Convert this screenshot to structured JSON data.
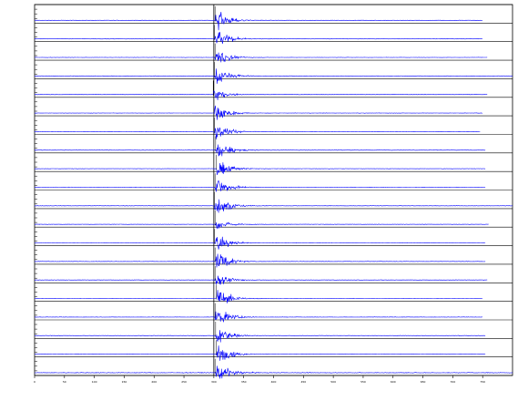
{
  "chart_data": {
    "type": "line",
    "title": "",
    "xlabel": "",
    "ylabel": "",
    "xlim": [
      0,
      800
    ],
    "x_ticks": [
      0,
      50,
      100,
      150,
      200,
      250,
      300,
      350,
      400,
      450,
      500,
      550,
      600,
      650,
      700,
      750
    ],
    "marker_time": 300,
    "trace_color": "#0000ff",
    "axis_color": "#000000",
    "grid": false,
    "series": [
      {
        "index": 1,
        "right_label": "",
        "onset_time": 302,
        "peak_amplitude": 0.9,
        "trace_end": 750
      },
      {
        "index": 2,
        "right_label": "",
        "onset_time": 301,
        "peak_amplitude": 0.9,
        "trace_end": 750
      },
      {
        "index": 3,
        "right_label": "",
        "onset_time": 302,
        "peak_amplitude": 0.8,
        "trace_end": 758
      },
      {
        "index": 4,
        "right_label": "",
        "onset_time": 301,
        "peak_amplitude": 0.9,
        "trace_end": 800
      },
      {
        "index": 5,
        "right_label": "",
        "onset_time": 299,
        "peak_amplitude": 0.6,
        "trace_end": 758
      },
      {
        "index": 6,
        "right_label": "",
        "onset_time": 300,
        "peak_amplitude": 0.9,
        "trace_end": 750
      },
      {
        "index": 7,
        "right_label": "",
        "onset_time": 301,
        "peak_amplitude": 0.8,
        "trace_end": 746
      },
      {
        "index": 8,
        "right_label": "",
        "onset_time": 303,
        "peak_amplitude": 0.9,
        "trace_end": 755
      },
      {
        "index": 9,
        "right_label": "",
        "onset_time": 304,
        "peak_amplitude": 0.9,
        "trace_end": 755
      },
      {
        "index": 10,
        "right_label": "",
        "onset_time": 302,
        "peak_amplitude": 0.9,
        "trace_end": 755
      },
      {
        "index": 11,
        "right_label": "",
        "onset_time": 301,
        "peak_amplitude": 1.0,
        "trace_end": 800
      },
      {
        "index": 12,
        "right_label": "",
        "onset_time": 302,
        "peak_amplitude": 0.5,
        "trace_end": 760
      },
      {
        "index": 13,
        "right_label": "",
        "onset_time": 301,
        "peak_amplitude": 0.8,
        "trace_end": 755
      },
      {
        "index": 14,
        "right_label": "",
        "onset_time": 302,
        "peak_amplitude": 0.9,
        "trace_end": 755
      },
      {
        "index": 15,
        "right_label": "",
        "onset_time": 302,
        "peak_amplitude": 0.6,
        "trace_end": 758
      },
      {
        "index": 16,
        "right_label": "",
        "onset_time": 304,
        "peak_amplitude": 1.0,
        "trace_end": 750
      },
      {
        "index": 17,
        "right_label": "",
        "onset_time": 302,
        "peak_amplitude": 0.9,
        "trace_end": 750
      },
      {
        "index": 18,
        "right_label": "",
        "onset_time": 303,
        "peak_amplitude": 0.9,
        "trace_end": 755
      },
      {
        "index": 19,
        "right_label": "",
        "onset_time": 304,
        "peak_amplitude": 0.9,
        "trace_end": 755
      },
      {
        "index": 20,
        "right_label": "",
        "onset_time": 302,
        "peak_amplitude": 1.0,
        "trace_end": 800
      }
    ]
  }
}
